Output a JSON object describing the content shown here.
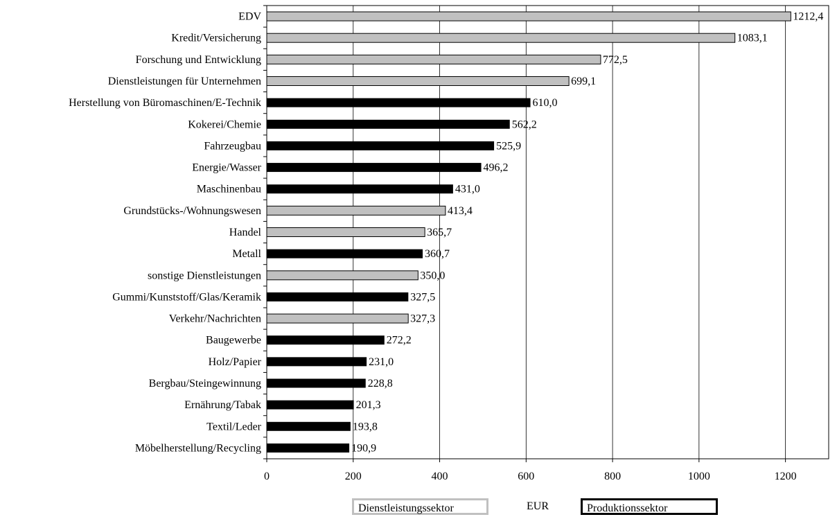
{
  "chart_data": {
    "type": "bar",
    "orientation": "horizontal",
    "xlim": [
      0,
      1300
    ],
    "x_ticks": [
      0,
      200,
      400,
      600,
      800,
      1000,
      1200
    ],
    "xlabel": "EUR",
    "grid": "vertical",
    "colors": {
      "Dienstleistungssektor": "#c0c0c0",
      "Produktionssektor": "#000000"
    },
    "legend": [
      "Dienstleistungssektor",
      "Produktionssektor"
    ],
    "categories": [
      "EDV",
      "Kredit/Versicherung",
      "Forschung und Entwicklung",
      "Dienstleistungen für Unternehmen",
      "Herstellung von Büromaschinen/E-Technik",
      "Kokerei/Chemie",
      "Fahrzeugbau",
      "Energie/Wasser",
      "Maschinenbau",
      "Grundstücks-/Wohnungswesen",
      "Handel",
      "Metall",
      "sonstige Dienstleistungen",
      "Gummi/Kunststoff/Glas/Keramik",
      "Verkehr/Nachrichten",
      "Baugewerbe",
      "Holz/Papier",
      "Bergbau/Steingewinnung",
      "Ernährung/Tabak",
      "Textil/Leder",
      "Möbelherstellung/Recycling"
    ],
    "values": [
      1212.4,
      1083.1,
      772.5,
      699.1,
      610.0,
      562.2,
      525.9,
      496.2,
      431.0,
      413.4,
      365.7,
      360.7,
      350.0,
      327.5,
      327.3,
      272.2,
      231.0,
      228.8,
      201.3,
      193.8,
      190.9
    ],
    "value_labels": [
      "1212,4",
      "1083,1",
      "772,5",
      "699,1",
      "610,0",
      "562,2",
      "525,9",
      "496,2",
      "431,0",
      "413,4",
      "365,7",
      "360,7",
      "350,0",
      "327,5",
      "327,3",
      "272,2",
      "231,0",
      "228,8",
      "201,3",
      "193,8",
      "190,9"
    ],
    "sector": [
      "Dienstleistungssektor",
      "Dienstleistungssektor",
      "Dienstleistungssektor",
      "Dienstleistungssektor",
      "Produktionssektor",
      "Produktionssektor",
      "Produktionssektor",
      "Produktionssektor",
      "Produktionssektor",
      "Dienstleistungssektor",
      "Dienstleistungssektor",
      "Produktionssektor",
      "Dienstleistungssektor",
      "Produktionssektor",
      "Dienstleistungssektor",
      "Produktionssektor",
      "Produktionssektor",
      "Produktionssektor",
      "Produktionssektor",
      "Produktionssektor",
      "Produktionssektor"
    ]
  }
}
